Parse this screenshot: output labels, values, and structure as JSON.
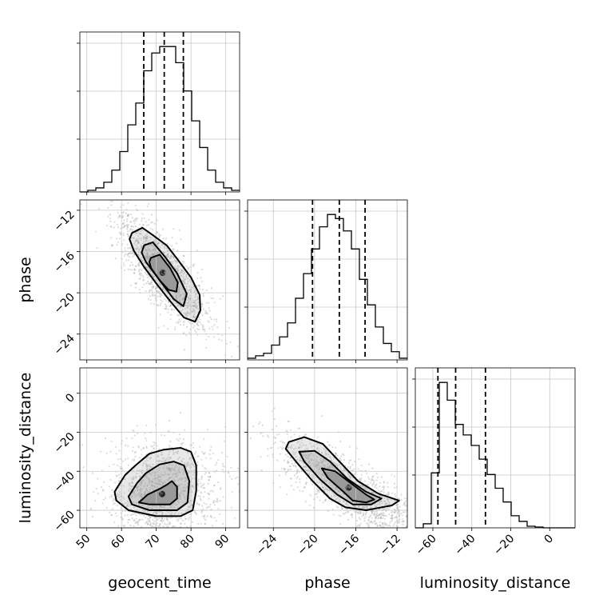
{
  "chart_data": {
    "type": "corner",
    "parameters": [
      "geocent_time",
      "phase",
      "luminosity_distance"
    ],
    "xlabels": {
      "geocent_time": "geocent_time",
      "phase": "phase",
      "luminosity_distance": "luminosity_distance"
    },
    "ylabels": {
      "phase": "phase",
      "luminosity_distance": "luminosity_distance"
    },
    "ranges": {
      "geocent_time": [
        48,
        94
      ],
      "phase": [
        -26.5,
        -11.0
      ],
      "luminosity_distance": [
        -69,
        13
      ]
    },
    "ticks": {
      "geocent_time": [
        50,
        60,
        70,
        80,
        90
      ],
      "phase": [
        -24,
        -20,
        -16,
        -12
      ],
      "luminosity_distance": [
        -60,
        -40,
        -20,
        0
      ]
    },
    "grid": true,
    "histograms": [
      {
        "parameter": "geocent_time",
        "bin_edges": [
          48,
          50.3,
          52.6,
          54.9,
          57.2,
          59.5,
          61.8,
          64.1,
          66.4,
          68.7,
          71,
          73.3,
          75.6,
          77.9,
          80.2,
          82.5,
          84.8,
          87.1,
          89.4,
          91.7,
          94
        ],
        "counts": [
          0,
          2,
          5,
          12,
          27,
          50,
          83,
          110,
          150,
          172,
          180,
          180,
          160,
          125,
          88,
          55,
          27,
          12,
          5,
          2
        ],
        "quantiles": [
          66.4,
          72.3,
          77.8
        ]
      },
      {
        "parameter": "phase",
        "bin_edges": [
          -26.5,
          -25.725,
          -24.95,
          -24.175,
          -23.4,
          -22.625,
          -21.85,
          -21.075,
          -20.3,
          -19.525,
          -18.75,
          -17.975,
          -17.2,
          -16.425,
          -15.65,
          -14.875,
          -14.1,
          -13.325,
          -12.55,
          -11.775,
          -11.0
        ],
        "counts": [
          2,
          5,
          8,
          18,
          28,
          45,
          75,
          105,
          135,
          162,
          177,
          172,
          157,
          135,
          98,
          67,
          40,
          20,
          10,
          2
        ],
        "quantiles": [
          -20.2,
          -17.6,
          -15.1
        ]
      },
      {
        "parameter": "luminosity_distance",
        "bin_edges": [
          -69,
          -64.9,
          -60.8,
          -56.7,
          -52.6,
          -48.5,
          -44.4,
          -40.3,
          -36.2,
          -32.1,
          -28,
          -23.9,
          -19.8,
          -15.7,
          -11.6,
          -7.5,
          -3.4,
          0.7,
          4.8,
          8.7,
          13
        ],
        "counts": [
          0,
          5,
          68,
          180,
          158,
          128,
          115,
          102,
          85,
          66,
          49,
          32,
          15,
          8,
          2,
          1,
          0,
          0,
          0,
          0
        ],
        "quantiles": [
          -57.4,
          -48.3,
          -33.0
        ]
      }
    ],
    "scatter_panels": [
      {
        "x": "geocent_time",
        "y": "phase",
        "contours": [
          [
            [
              63,
              -14.2
            ],
            [
              66,
              -13.7
            ],
            [
              69,
              -14.4
            ],
            [
              73,
              -15.4
            ],
            [
              76,
              -16.7
            ],
            [
              80,
              -18.5
            ],
            [
              82.5,
              -20.2
            ],
            [
              82.7,
              -21.7
            ],
            [
              81.2,
              -22.8
            ],
            [
              78,
              -22.4
            ],
            [
              74,
              -20.8
            ],
            [
              70,
              -19.1
            ],
            [
              66.5,
              -17.5
            ],
            [
              63.5,
              -15.9
            ],
            [
              62.3,
              -14.8
            ]
          ],
          [
            [
              66.5,
              -15.4
            ],
            [
              69,
              -15.1
            ],
            [
              72.5,
              -16.5
            ],
            [
              76,
              -18.1
            ],
            [
              78.8,
              -20.1
            ],
            [
              77.8,
              -21.3
            ],
            [
              75,
              -20.6
            ],
            [
              71,
              -18.8
            ],
            [
              67,
              -17.0
            ],
            [
              65.8,
              -16.1
            ]
          ],
          [
            [
              68.5,
              -16.6
            ],
            [
              71,
              -16.3
            ],
            [
              74,
              -17.6
            ],
            [
              76.2,
              -19.0
            ],
            [
              75.8,
              -19.9
            ],
            [
              73.5,
              -19.7
            ],
            [
              71,
              -18.8
            ],
            [
              68.5,
              -17.6
            ],
            [
              68,
              -17.0
            ]
          ]
        ]
      },
      {
        "x": "geocent_time",
        "y": "luminosity_distance",
        "contours": [
          [
            [
              58,
              -50.5
            ],
            [
              61,
              -42
            ],
            [
              64,
              -37
            ],
            [
              68,
              -31
            ],
            [
              72,
              -29
            ],
            [
              77,
              -28
            ],
            [
              80,
              -30
            ],
            [
              81.5,
              -37
            ],
            [
              81.5,
              -50
            ],
            [
              80.5,
              -60
            ],
            [
              77,
              -63
            ],
            [
              70,
              -63
            ],
            [
              62,
              -60
            ],
            [
              58.5,
              -55
            ]
          ],
          [
            [
              62,
              -53
            ],
            [
              64.5,
              -46
            ],
            [
              67,
              -41
            ],
            [
              71,
              -36.5
            ],
            [
              75,
              -35
            ],
            [
              78,
              -37
            ],
            [
              79.5,
              -45
            ],
            [
              79,
              -56
            ],
            [
              76,
              -60
            ],
            [
              68,
              -60
            ],
            [
              63,
              -57
            ]
          ],
          [
            [
              65,
              -56
            ],
            [
              67.5,
              -52
            ],
            [
              71,
              -49
            ],
            [
              73,
              -47
            ],
            [
              74.5,
              -45
            ],
            [
              76,
              -48
            ],
            [
              76,
              -54
            ],
            [
              74,
              -57
            ],
            [
              68,
              -57
            ]
          ]
        ]
      },
      {
        "x": "phase",
        "y": "luminosity_distance",
        "contours": [
          [
            [
              -22.5,
              -25
            ],
            [
              -21,
              -22.5
            ],
            [
              -19.2,
              -26
            ],
            [
              -17.5,
              -35.5
            ],
            [
              -15.8,
              -45
            ],
            [
              -13.8,
              -51.5
            ],
            [
              -11.8,
              -55
            ],
            [
              -12.5,
              -57.5
            ],
            [
              -15,
              -60
            ],
            [
              -17,
              -58.5
            ],
            [
              -18.5,
              -54
            ],
            [
              -20.2,
              -45
            ],
            [
              -21.8,
              -35
            ],
            [
              -22.8,
              -28.5
            ]
          ],
          [
            [
              -21.5,
              -30
            ],
            [
              -20,
              -29.5
            ],
            [
              -18.5,
              -35
            ],
            [
              -16.8,
              -44
            ],
            [
              -15,
              -50.5
            ],
            [
              -13.5,
              -54
            ],
            [
              -14.5,
              -57
            ],
            [
              -16.3,
              -57
            ],
            [
              -17.8,
              -52
            ],
            [
              -19.5,
              -44
            ],
            [
              -21,
              -35
            ]
          ],
          [
            [
              -19.3,
              -38.5
            ],
            [
              -18,
              -40
            ],
            [
              -16.5,
              -46
            ],
            [
              -15,
              -52
            ],
            [
              -14.2,
              -54.5
            ],
            [
              -15,
              -56
            ],
            [
              -16.3,
              -55
            ],
            [
              -17.3,
              -50
            ],
            [
              -18.7,
              -43.5
            ]
          ]
        ]
      }
    ]
  }
}
